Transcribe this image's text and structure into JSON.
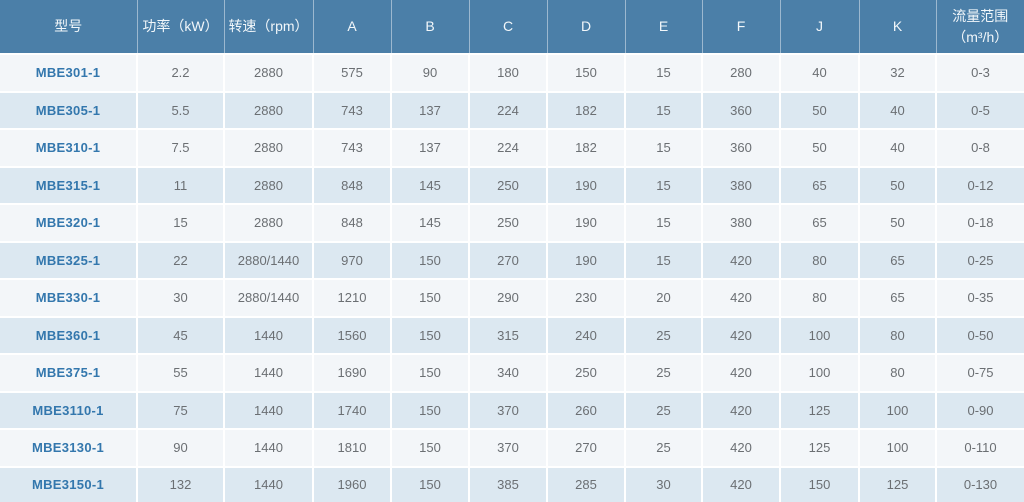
{
  "table": {
    "title": "pump-model-specifications",
    "columns": [
      "型号",
      "功率（kW）",
      "转速（rpm）",
      "A",
      "B",
      "C",
      "D",
      "E",
      "F",
      "J",
      "K",
      "流量范围\n（m³/h）"
    ],
    "rows": [
      [
        "MBE301-1",
        "2.2",
        "2880",
        "575",
        "90",
        "180",
        "150",
        "15",
        "280",
        "40",
        "32",
        "0-3"
      ],
      [
        "MBE305-1",
        "5.5",
        "2880",
        "743",
        "137",
        "224",
        "182",
        "15",
        "360",
        "50",
        "40",
        "0-5"
      ],
      [
        "MBE310-1",
        "7.5",
        "2880",
        "743",
        "137",
        "224",
        "182",
        "15",
        "360",
        "50",
        "40",
        "0-8"
      ],
      [
        "MBE315-1",
        "11",
        "2880",
        "848",
        "145",
        "250",
        "190",
        "15",
        "380",
        "65",
        "50",
        "0-12"
      ],
      [
        "MBE320-1",
        "15",
        "2880",
        "848",
        "145",
        "250",
        "190",
        "15",
        "380",
        "65",
        "50",
        "0-18"
      ],
      [
        "MBE325-1",
        "22",
        "2880/1440",
        "970",
        "150",
        "270",
        "190",
        "15",
        "420",
        "80",
        "65",
        "0-25"
      ],
      [
        "MBE330-1",
        "30",
        "2880/1440",
        "1210",
        "150",
        "290",
        "230",
        "20",
        "420",
        "80",
        "65",
        "0-35"
      ],
      [
        "MBE360-1",
        "45",
        "1440",
        "1560",
        "150",
        "315",
        "240",
        "25",
        "420",
        "100",
        "80",
        "0-50"
      ],
      [
        "MBE375-1",
        "55",
        "1440",
        "1690",
        "150",
        "340",
        "250",
        "25",
        "420",
        "100",
        "80",
        "0-75"
      ],
      [
        "MBE3110-1",
        "75",
        "1440",
        "1740",
        "150",
        "370",
        "260",
        "25",
        "420",
        "125",
        "100",
        "0-90"
      ],
      [
        "MBE3130-1",
        "90",
        "1440",
        "1810",
        "150",
        "370",
        "270",
        "25",
        "420",
        "125",
        "100",
        "0-110"
      ],
      [
        "MBE3150-1",
        "132",
        "1440",
        "1960",
        "150",
        "385",
        "285",
        "30",
        "420",
        "150",
        "125",
        "0-130"
      ]
    ]
  },
  "colors": {
    "header_background": "#4b7fa8",
    "header_text": "#f2f7fa",
    "row_odd_background": "#f3f6f9",
    "row_even_background": "#dce8f1",
    "cell_text": "#6b6f73",
    "model_text": "#3377ad",
    "divider": "#ffffff"
  }
}
